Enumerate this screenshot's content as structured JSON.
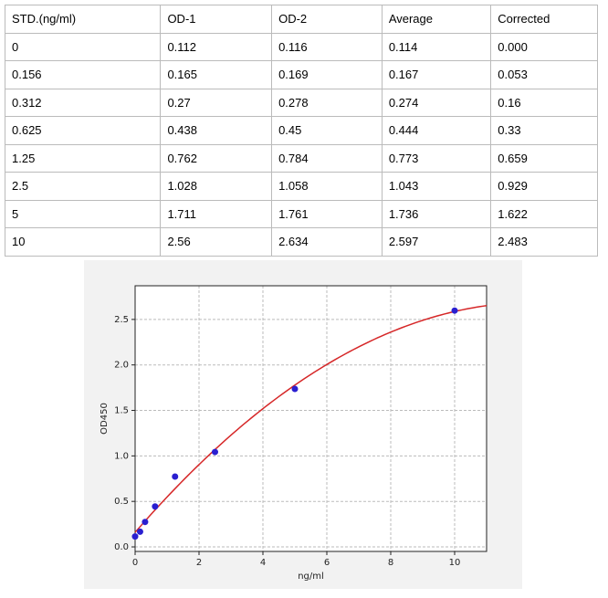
{
  "table": {
    "header": [
      "STD.(ng/ml)",
      "OD-1",
      "OD-2",
      "Average",
      "Corrected"
    ],
    "rows": [
      [
        "0",
        "0.112",
        "0.116",
        "0.114",
        "0.000"
      ],
      [
        "0.156",
        "0.165",
        "0.169",
        "0.167",
        "0.053"
      ],
      [
        "0.312",
        "0.27",
        "0.278",
        "0.274",
        "0.16"
      ],
      [
        "0.625",
        "0.438",
        "0.45",
        "0.444",
        "0.33"
      ],
      [
        "1.25",
        "0.762",
        "0.784",
        "0.773",
        "0.659"
      ],
      [
        "2.5",
        "1.028",
        "1.058",
        "1.043",
        "0.929"
      ],
      [
        "5",
        "1.711",
        "1.761",
        "1.736",
        "1.622"
      ],
      [
        "10",
        "2.56",
        "2.634",
        "2.597",
        "2.483"
      ]
    ]
  },
  "chart_data": {
    "type": "scatter",
    "x_label": "ng/ml",
    "y_label": "OD450",
    "x": [
      0,
      0.156,
      0.312,
      0.625,
      1.25,
      2.5,
      5,
      10
    ],
    "series": [
      {
        "color": "#2a1fd0",
        "values": [
          0.114,
          0.167,
          0.274,
          0.444,
          0.773,
          1.043,
          1.736,
          2.597
        ]
      }
    ],
    "fit_color": "#d62728",
    "xlim": [
      0,
      11
    ],
    "ylim": [
      -0.05,
      2.87
    ],
    "xticks": [
      0,
      2,
      4,
      6,
      8,
      10
    ],
    "yticks": [
      {
        "value": 0,
        "label": "0.0"
      },
      0.5,
      {
        "value": 1,
        "label": "1.0"
      },
      1.5,
      {
        "value": 2,
        "label": "2.0"
      },
      2.5
    ],
    "grid": true
  }
}
